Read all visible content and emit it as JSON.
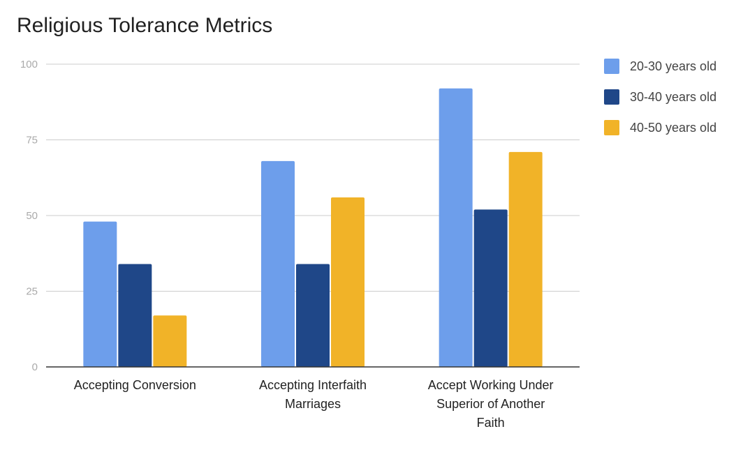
{
  "chart_data": {
    "type": "bar",
    "title": "Religious Tolerance Metrics",
    "categories": [
      [
        "Accepting Conversion"
      ],
      [
        "Accepting Interfaith",
        "Marriages"
      ],
      [
        "Accept Working Under",
        "Superior of Another",
        "Faith"
      ]
    ],
    "series": [
      {
        "name": "20-30 years old",
        "color": "#6d9eeb",
        "values": [
          48,
          68,
          92
        ]
      },
      {
        "name": "30-40 years old",
        "color": "#1f4788",
        "values": [
          34,
          34,
          52
        ]
      },
      {
        "name": "40-50 years old",
        "color": "#f1b328",
        "values": [
          17,
          56,
          71
        ]
      }
    ],
    "ylim": [
      0,
      100
    ],
    "yticks": [
      0,
      25,
      50,
      75,
      100
    ],
    "grid": true,
    "legend": "right"
  }
}
